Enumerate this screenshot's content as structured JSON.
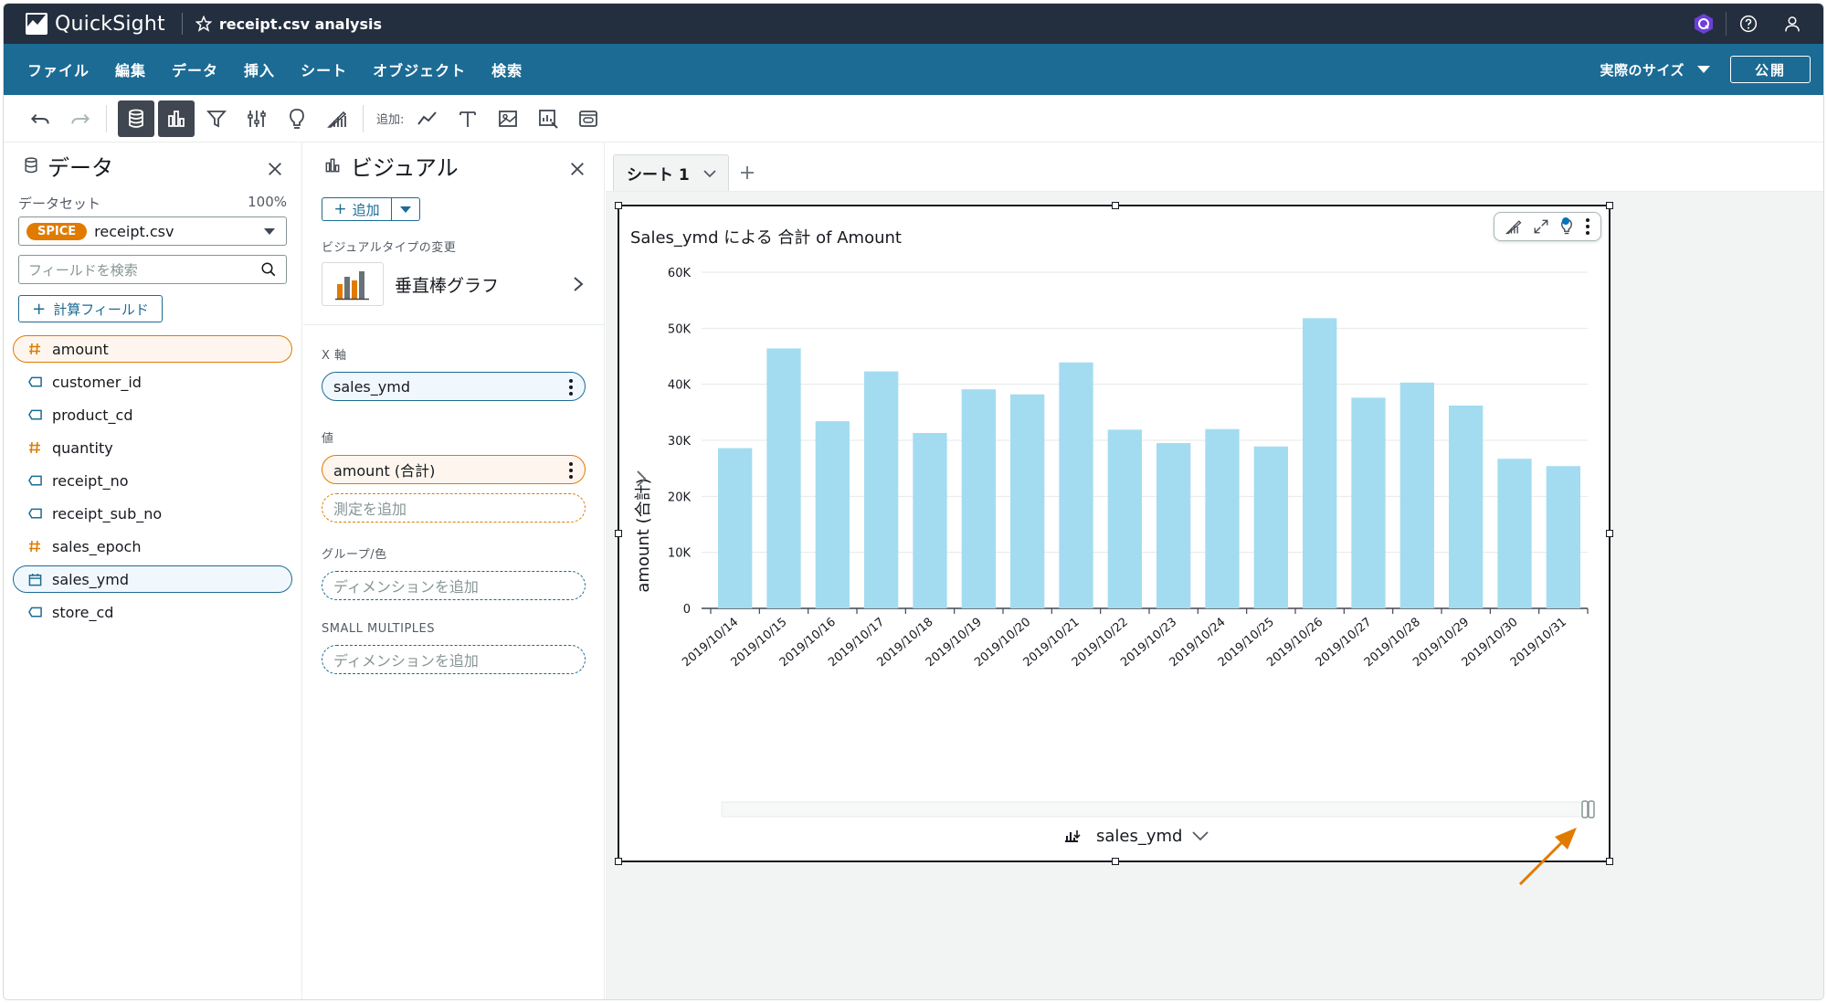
{
  "app": {
    "name": "QuickSight",
    "analysis_title": "receipt.csv analysis"
  },
  "menu": {
    "items": [
      "ファイル",
      "編集",
      "データ",
      "挿入",
      "シート",
      "オブジェクト",
      "検索"
    ],
    "size_label": "実際のサイズ",
    "publish_label": "公開"
  },
  "toolbar": {
    "add_label": "追加:"
  },
  "data_panel": {
    "title": "データ",
    "dataset_label": "データセット",
    "dataset_percent": "100%",
    "spice_badge": "SPICE",
    "dataset_name": "receipt.csv",
    "search_placeholder": "フィールドを検索",
    "calc_field_label": "計算フィールド",
    "fields": [
      {
        "name": "amount",
        "type": "measure",
        "selected": true
      },
      {
        "name": "customer_id",
        "type": "dimension",
        "selected": false
      },
      {
        "name": "product_cd",
        "type": "dimension",
        "selected": false
      },
      {
        "name": "quantity",
        "type": "measure",
        "selected": false
      },
      {
        "name": "receipt_no",
        "type": "dimension",
        "selected": false
      },
      {
        "name": "receipt_sub_no",
        "type": "dimension",
        "selected": false
      },
      {
        "name": "sales_epoch",
        "type": "measure",
        "selected": false
      },
      {
        "name": "sales_ymd",
        "type": "date",
        "selected": true
      },
      {
        "name": "store_cd",
        "type": "dimension",
        "selected": false
      }
    ]
  },
  "visual_panel": {
    "title": "ビジュアル",
    "add_label": "追加",
    "change_type_label": "ビジュアルタイプの変更",
    "visual_type": "垂直棒グラフ",
    "x_axis_label": "X 軸",
    "x_axis_field": "sales_ymd",
    "value_label": "値",
    "value_field": "amount (合計)",
    "add_measure": "測定を追加",
    "group_label": "グループ/色",
    "add_dimension": "ディメンションを追加",
    "small_multiples_label": "SMALL MULTIPLES",
    "add_dimension_2": "ディメンションを追加"
  },
  "sheet": {
    "tab_label": "シート 1"
  },
  "chart_data": {
    "type": "bar",
    "title": "Sales_ymd による 合計 of Amount",
    "ylabel": "amount (合計)",
    "xlabel": "sales_ymd",
    "ylim": [
      0,
      60000
    ],
    "yticks": [
      0,
      10000,
      20000,
      30000,
      40000,
      50000,
      60000
    ],
    "ytick_labels": [
      "0",
      "10K",
      "20K",
      "30K",
      "40K",
      "50K",
      "60K"
    ],
    "categories": [
      "2019/10/14",
      "2019/10/15",
      "2019/10/16",
      "2019/10/17",
      "2019/10/18",
      "2019/10/19",
      "2019/10/20",
      "2019/10/21",
      "2019/10/22",
      "2019/10/23",
      "2019/10/24",
      "2019/10/25",
      "2019/10/26",
      "2019/10/27",
      "2019/10/28",
      "2019/10/29",
      "2019/10/30",
      "2019/10/31"
    ],
    "values": [
      28600,
      46400,
      33400,
      42300,
      31300,
      39100,
      38200,
      43900,
      31900,
      29500,
      32000,
      28900,
      51800,
      37600,
      40300,
      36200,
      26700,
      25400
    ],
    "bar_color": "#a3dcf1",
    "grid": true
  },
  "colors": {
    "topbar": "#232f3e",
    "menubar": "#1c6b94",
    "measure": "#e07b00",
    "dimension": "#1c6b94",
    "arrow": "#e07b00"
  }
}
